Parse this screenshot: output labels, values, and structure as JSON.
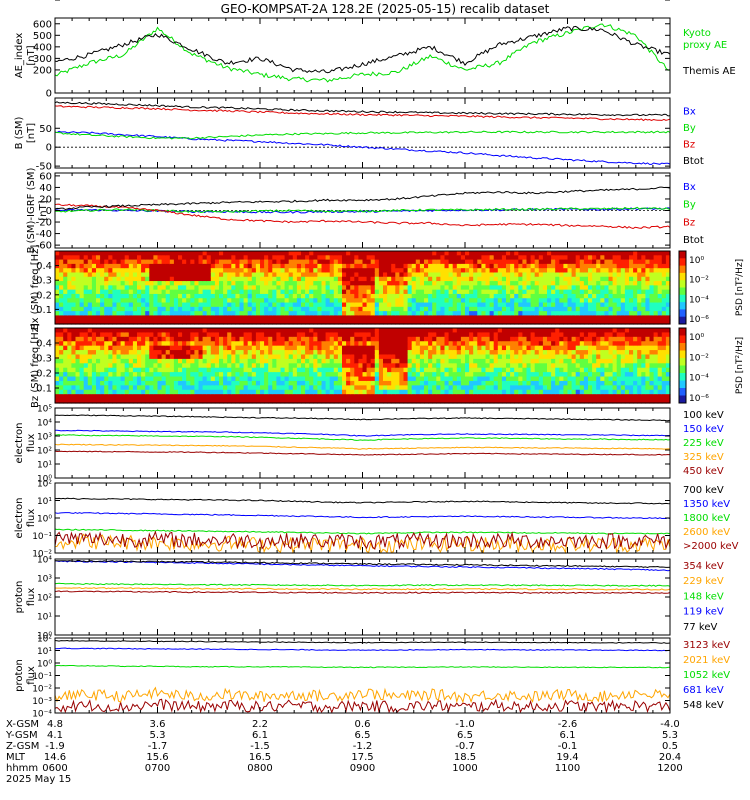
{
  "title": "GEO-KOMPSAT-2A 128.2E (2025-05-15) recalib dataset",
  "colors": {
    "black": "#000000",
    "blue": "#0000ff",
    "green": "#00dd00",
    "red": "#dd0000",
    "orange": "#ffa500",
    "darkred": "#990000"
  },
  "chart_data": [
    {
      "type": "line",
      "ylabel": "AE_index [nT]",
      "ylim": [
        0,
        650
      ],
      "yticks": [
        "0",
        "100",
        "200",
        "300",
        "400",
        "500",
        "600"
      ],
      "x": [
        "0600",
        "0620",
        "0640",
        "0700",
        "0720",
        "0740",
        "0800",
        "0820",
        "0840",
        "0900",
        "0920",
        "0940",
        "1000",
        "1020",
        "1040",
        "1100",
        "1120",
        "1140",
        "1200"
      ],
      "series": [
        {
          "name": "Kyoto proxy AE",
          "color": "#00dd00",
          "values": [
            150,
            260,
            330,
            560,
            340,
            220,
            160,
            120,
            110,
            160,
            180,
            320,
            200,
            260,
            440,
            520,
            600,
            500,
            180
          ]
        },
        {
          "name": "Themis AE",
          "color": "#000000",
          "values": [
            270,
            330,
            420,
            510,
            380,
            260,
            300,
            200,
            180,
            250,
            320,
            400,
            260,
            420,
            490,
            560,
            550,
            420,
            330
          ]
        }
      ]
    },
    {
      "type": "line",
      "ylabel": "B (SM) [nT]",
      "ylim": [
        -55,
        130
      ],
      "yticks": [
        "-50",
        "0",
        "50",
        "100"
      ],
      "series": [
        {
          "name": "Bx",
          "color": "#0000ff",
          "values": [
            40,
            38,
            33,
            28,
            22,
            18,
            15,
            10,
            6,
            0,
            -5,
            -10,
            -15,
            -22,
            -28,
            -33,
            -38,
            -42,
            -45
          ]
        },
        {
          "name": "By",
          "color": "#00dd00",
          "values": [
            38,
            32,
            28,
            24,
            24,
            28,
            32,
            35,
            36,
            38,
            38,
            39,
            40,
            40,
            40,
            40,
            40,
            40,
            40
          ]
        },
        {
          "name": "Bz",
          "color": "#dd0000",
          "values": [
            108,
            106,
            104,
            102,
            98,
            96,
            93,
            90,
            88,
            86,
            85,
            83,
            82,
            80,
            78,
            77,
            75,
            73,
            72
          ]
        },
        {
          "name": "Btot",
          "color": "#000000",
          "values": [
            118,
            116,
            113,
            110,
            106,
            104,
            101,
            98,
            96,
            94,
            93,
            91,
            90,
            89,
            88,
            87,
            86,
            85,
            85
          ]
        }
      ]
    },
    {
      "type": "line",
      "ylabel": "B (SM)-IGRF (SM) [nT]",
      "ylim": [
        -65,
        65
      ],
      "yticks": [
        "-60",
        "-40",
        "-20",
        "0",
        "20",
        "40",
        "60"
      ],
      "series": [
        {
          "name": "Bx",
          "color": "#0000ff",
          "values": [
            0,
            1,
            0,
            -1,
            -2,
            -2,
            -3,
            -3,
            -2,
            -2,
            -1,
            0,
            1,
            1,
            2,
            2,
            2,
            3,
            3
          ]
        },
        {
          "name": "By",
          "color": "#00dd00",
          "values": [
            -2,
            0,
            2,
            0,
            -2,
            -2,
            -1,
            0,
            -1,
            -1,
            0,
            1,
            1,
            2,
            2,
            3,
            3,
            4,
            3
          ]
        },
        {
          "name": "Bz",
          "color": "#dd0000",
          "values": [
            10,
            8,
            5,
            0,
            -8,
            -15,
            -18,
            -20,
            -18,
            -20,
            -22,
            -22,
            -26,
            -24,
            -24,
            -26,
            -27,
            -30,
            -28
          ]
        },
        {
          "name": "Btot",
          "color": "#000000",
          "values": [
            2,
            6,
            8,
            10,
            12,
            14,
            15,
            16,
            18,
            18,
            20,
            25,
            30,
            32,
            30,
            33,
            35,
            37,
            40
          ]
        }
      ]
    },
    {
      "type": "heatmap",
      "ylabel": "Bx (SM) freq [Hz]",
      "yticks": [
        "0.1",
        "0.2",
        "0.3",
        "0.4"
      ],
      "colorbar_label": "PSD [nT²/Hz]",
      "colorbar_ticks": [
        "10⁰",
        "10⁻²",
        "10⁻⁴",
        "10⁻⁶"
      ]
    },
    {
      "type": "heatmap",
      "ylabel": "Bz (SM) freq [Hz]",
      "yticks": [
        "0.1",
        "0.2",
        "0.3",
        "0.4"
      ],
      "colorbar_label": "PSD [nT²/Hz]",
      "colorbar_ticks": [
        "10⁰",
        "10⁻²",
        "10⁻⁴",
        "10⁻⁶"
      ]
    },
    {
      "type": "line",
      "ylabel": "electron flux",
      "scale": "log",
      "ylim": [
        1,
        100000
      ],
      "yticks": [
        "10⁰",
        "10¹",
        "10²",
        "10³",
        "10⁴",
        "10⁵"
      ],
      "series": [
        {
          "name": "100 keV",
          "color": "#000000",
          "values": [
            30000,
            30000,
            28000,
            26000,
            24000,
            22000,
            20000,
            19000,
            17000,
            15000,
            17000,
            18000,
            19000,
            18000,
            17000,
            16000,
            15000,
            14000,
            13000
          ]
        },
        {
          "name": "150 keV",
          "color": "#0000ff",
          "values": [
            2500,
            2400,
            2200,
            2100,
            2000,
            1900,
            1700,
            1500,
            1300,
            1000,
            1200,
            1300,
            1400,
            1300,
            1300,
            1200,
            1200,
            1100,
            1100
          ]
        },
        {
          "name": "225 keV",
          "color": "#00dd00",
          "values": [
            1200,
            1100,
            1050,
            1000,
            950,
            900,
            800,
            700,
            600,
            500,
            600,
            650,
            700,
            700,
            650,
            600,
            600,
            550,
            550
          ]
        },
        {
          "name": "325 keV",
          "color": "#ffa500",
          "values": [
            250,
            240,
            230,
            220,
            210,
            200,
            180,
            160,
            140,
            120,
            130,
            140,
            150,
            150,
            140,
            140,
            130,
            130,
            120
          ]
        },
        {
          "name": "450 keV",
          "color": "#990000",
          "values": [
            80,
            78,
            75,
            72,
            70,
            66,
            60,
            55,
            50,
            45,
            48,
            52,
            55,
            55,
            52,
            50,
            48,
            47,
            45
          ]
        }
      ]
    },
    {
      "type": "line",
      "ylabel": "electron flux",
      "scale": "log",
      "ylim": [
        0.01,
        100
      ],
      "yticks": [
        "10⁻²",
        "10⁻¹",
        "10⁰",
        "10¹",
        "10²"
      ],
      "series": [
        {
          "name": "700 keV",
          "color": "#000000",
          "values": [
            13,
            12.5,
            12,
            11.5,
            11,
            10.5,
            10,
            9,
            8,
            7.5,
            8,
            8.5,
            9,
            8.5,
            8,
            7.5,
            7,
            7,
            6.5
          ]
        },
        {
          "name": "1350 keV",
          "color": "#0000ff",
          "values": [
            2,
            1.9,
            1.8,
            1.7,
            1.6,
            1.5,
            1.4,
            1.3,
            1.2,
            1.1,
            1.15,
            1.2,
            1.25,
            1.2,
            1.15,
            1.1,
            1.05,
            1,
            0.95
          ]
        },
        {
          "name": "1800 keV",
          "color": "#00dd00",
          "values": [
            0.22,
            0.21,
            0.2,
            0.19,
            0.18,
            0.17,
            0.16,
            0.15,
            0.14,
            0.13,
            0.14,
            0.15,
            0.15,
            0.15,
            0.14,
            0.14,
            0.13,
            0.13,
            0.13
          ]
        },
        {
          "name": "2600 keV",
          "color": "#ffa500",
          "values": [
            0.05,
            0.045,
            0.04,
            0.04,
            0.035,
            0.035,
            0.03,
            0.03,
            0.03,
            0.028,
            0.03,
            0.032,
            0.032,
            0.03,
            0.03,
            0.03,
            0.03,
            0.03,
            0.03
          ]
        },
        {
          "name": ">2000 keV",
          "color": "#990000",
          "values": [
            0.07,
            0.065,
            0.06,
            0.06,
            0.055,
            0.055,
            0.05,
            0.05,
            0.048,
            0.045,
            0.048,
            0.05,
            0.05,
            0.05,
            0.05,
            0.05,
            0.05,
            0.05,
            0.05
          ]
        }
      ]
    },
    {
      "type": "line",
      "ylabel": "proton flux",
      "scale": "log",
      "ylim": [
        1,
        10000
      ],
      "yticks": [
        "10⁰",
        "10¹",
        "10²",
        "10³",
        "10⁴"
      ],
      "series": [
        {
          "name": "354 keV",
          "color": "#990000",
          "values": [
            200,
            195,
            190,
            185,
            180,
            178,
            175,
            170,
            168,
            165,
            168,
            170,
            172,
            170,
            168,
            166,
            165,
            163,
            160
          ]
        },
        {
          "name": "229 keV",
          "color": "#ffa500",
          "values": [
            300,
            295,
            290,
            285,
            280,
            275,
            270,
            265,
            260,
            255,
            258,
            260,
            262,
            260,
            258,
            255,
            252,
            250,
            248
          ]
        },
        {
          "name": "148 keV",
          "color": "#00dd00",
          "values": [
            500,
            480,
            470,
            460,
            450,
            440,
            430,
            420,
            410,
            400,
            410,
            420,
            420,
            415,
            410,
            405,
            400,
            395,
            390
          ]
        },
        {
          "name": "119 keV",
          "color": "#0000ff",
          "values": [
            7500,
            7300,
            7000,
            6600,
            6200,
            5800,
            5400,
            5000,
            4700,
            4400,
            4200,
            4000,
            3800,
            3600,
            3400,
            3200,
            3000,
            2800,
            2500
          ]
        },
        {
          "name": "77 keV",
          "color": "#000000",
          "values": [
            8000,
            7800,
            7600,
            7300,
            7000,
            6700,
            6400,
            6100,
            5800,
            5500,
            5300,
            5100,
            4900,
            4700,
            4500,
            4300,
            4100,
            3900,
            3700
          ]
        }
      ]
    },
    {
      "type": "line",
      "ylabel": "proton flux",
      "scale": "log",
      "ylim": [
        0.0001,
        100
      ],
      "yticks": [
        "10⁻⁴",
        "10⁻³",
        "10⁻²",
        "10⁻¹",
        "10⁰",
        "10¹",
        "10²"
      ],
      "series": [
        {
          "name": "3123 keV",
          "color": "#990000",
          "values": [
            0.0003,
            0.0004,
            0.0003,
            0.0005,
            0.0003,
            0.0004,
            0.0003,
            0.0004,
            0.0003,
            0.0004,
            0.0003,
            0.0004,
            0.0003,
            0.0004,
            0.0003,
            0.0004,
            0.0003,
            0.0004,
            0.0003
          ]
        },
        {
          "name": "2021 keV",
          "color": "#ffa500",
          "values": [
            0.002,
            0.003,
            0.002,
            0.004,
            0.002,
            0.003,
            0.002,
            0.003,
            0.002,
            0.004,
            0.002,
            0.003,
            0.002,
            0.003,
            0.002,
            0.003,
            0.002,
            0.004,
            0.002
          ]
        },
        {
          "name": "1052 keV",
          "color": "#00dd00",
          "values": [
            0.6,
            0.6,
            0.55,
            0.55,
            0.5,
            0.5,
            0.5,
            0.48,
            0.46,
            0.45,
            0.46,
            0.47,
            0.48,
            0.47,
            0.46,
            0.45,
            0.45,
            0.45,
            0.44
          ]
        },
        {
          "name": "681 keV",
          "color": "#0000ff",
          "values": [
            15,
            14.5,
            14,
            13.5,
            13,
            12.5,
            12,
            11.5,
            11,
            10.5,
            11,
            11.5,
            12,
            11.5,
            11,
            11,
            10.5,
            10.5,
            10
          ]
        },
        {
          "name": "548 keV",
          "color": "#000000",
          "values": [
            60,
            58,
            56,
            54,
            52,
            50,
            48,
            46,
            44,
            42,
            44,
            45,
            46,
            45,
            44,
            43,
            42,
            41,
            40
          ]
        }
      ]
    }
  ],
  "orbit_table": {
    "rows": [
      {
        "label": "X-GSM",
        "values": [
          "4.8",
          "3.6",
          "2.2",
          "0.6",
          "-1.0",
          "-2.6",
          "-4.0"
        ]
      },
      {
        "label": "Y-GSM",
        "values": [
          "4.1",
          "5.3",
          "6.1",
          "6.5",
          "6.5",
          "6.1",
          "5.3"
        ]
      },
      {
        "label": "Z-GSM",
        "values": [
          "-1.9",
          "-1.7",
          "-1.5",
          "-1.2",
          "-0.7",
          "-0.1",
          "0.5"
        ]
      },
      {
        "label": "MLT",
        "values": [
          "14.6",
          "15.6",
          "16.5",
          "17.5",
          "18.5",
          "19.4",
          "20.4"
        ]
      },
      {
        "label": "hhmm",
        "values": [
          "0600",
          "0700",
          "0800",
          "0900",
          "1000",
          "1100",
          "1200"
        ]
      }
    ],
    "date": "2025 May 15"
  }
}
